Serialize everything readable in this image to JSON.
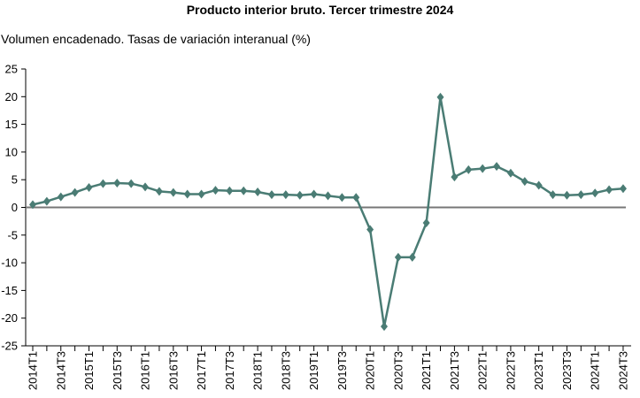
{
  "chart_data": {
    "type": "line",
    "title": "Producto interior bruto. Tercer trimestre 2024",
    "subtitle": "Volumen encadenado. Tasas de variación interanual (%)",
    "xlabel": "",
    "ylabel": "",
    "ylim": [
      -25,
      25
    ],
    "yticks": [
      25,
      20,
      15,
      10,
      5,
      0,
      -5,
      -10,
      -15,
      -20,
      -25
    ],
    "x_tick_labels": [
      "2014T1",
      "2014T3",
      "2015T1",
      "2015T3",
      "2016T1",
      "2016T3",
      "2017T1",
      "2017T3",
      "2018T1",
      "2018T3",
      "2019T1",
      "2019T3",
      "2020T1",
      "2020T3",
      "2021T1",
      "2021T3",
      "2022T1",
      "2022T3",
      "2023T1",
      "2023T3",
      "2024T1",
      "2024T3"
    ],
    "categories": [
      "2014T1",
      "2014T2",
      "2014T3",
      "2014T4",
      "2015T1",
      "2015T2",
      "2015T3",
      "2015T4",
      "2016T1",
      "2016T2",
      "2016T3",
      "2016T4",
      "2017T1",
      "2017T2",
      "2017T3",
      "2017T4",
      "2018T1",
      "2018T2",
      "2018T3",
      "2018T4",
      "2019T1",
      "2019T2",
      "2019T3",
      "2019T4",
      "2020T1",
      "2020T2",
      "2020T3",
      "2020T4",
      "2021T1",
      "2021T2",
      "2021T3",
      "2021T4",
      "2022T1",
      "2022T2",
      "2022T3",
      "2022T4",
      "2023T1",
      "2023T2",
      "2023T3",
      "2023T4",
      "2024T1",
      "2024T2",
      "2024T3"
    ],
    "series": [
      {
        "name": "PIB",
        "color": "#4a7c74",
        "values": [
          0.5,
          1.1,
          1.9,
          2.7,
          3.6,
          4.3,
          4.4,
          4.3,
          3.7,
          2.9,
          2.7,
          2.4,
          2.4,
          3.1,
          3.0,
          3.0,
          2.8,
          2.3,
          2.3,
          2.2,
          2.4,
          2.1,
          1.8,
          1.8,
          -4.0,
          -21.5,
          -9.0,
          -9.0,
          -2.8,
          19.9,
          5.5,
          6.8,
          7.0,
          7.4,
          6.2,
          4.7,
          4.0,
          2.3,
          2.2,
          2.3,
          2.6,
          3.2,
          3.4
        ]
      }
    ],
    "zero_line": true,
    "grid": false,
    "legend": "none"
  }
}
